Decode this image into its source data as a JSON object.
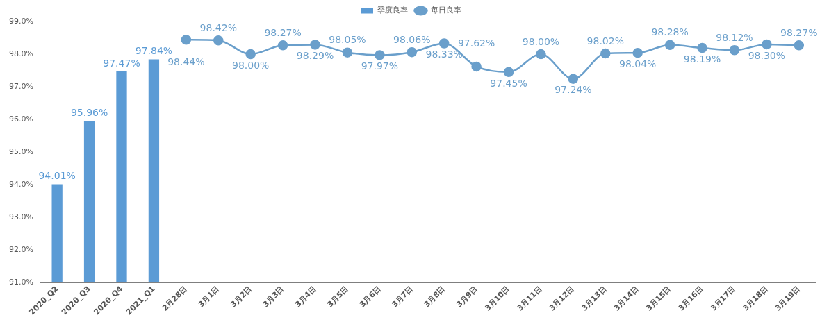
{
  "chart_data": {
    "type": "bar",
    "categories": [
      "2020_Q2",
      "2020_Q3",
      "2020_Q4",
      "2021_Q1",
      "2月28日",
      "3月1日",
      "3月2日",
      "3月3日",
      "3月4日",
      "3月5日",
      "3月6日",
      "3月7日",
      "3月8日",
      "3月9日",
      "3月10日",
      "3月11日",
      "3月12日",
      "3月13日",
      "3月14日",
      "3月15日",
      "3月16日",
      "3月17日",
      "3月18日",
      "3月19日"
    ],
    "series": [
      {
        "name": "季度良率",
        "color": "#5b9bd5",
        "values": [
          94.01,
          95.96,
          97.47,
          97.84,
          null,
          null,
          null,
          null,
          null,
          null,
          null,
          null,
          null,
          null,
          null,
          null,
          null,
          null,
          null,
          null,
          null,
          null,
          null,
          null
        ],
        "value_labels": [
          "94.01%",
          "95.96%",
          "97.47%",
          "97.84%",
          null,
          null,
          null,
          null,
          null,
          null,
          null,
          null,
          null,
          null,
          null,
          null,
          null,
          null,
          null,
          null,
          null,
          null,
          null,
          null
        ]
      },
      {
        "name": "每日良率",
        "type": "line",
        "color": "#6a9fcb",
        "values": [
          null,
          null,
          null,
          null,
          98.44,
          98.42,
          98.0,
          98.27,
          98.29,
          98.05,
          97.97,
          98.06,
          98.33,
          97.62,
          97.45,
          98.0,
          97.24,
          98.02,
          98.04,
          98.28,
          98.19,
          98.12,
          98.3,
          98.27
        ],
        "value_labels": [
          null,
          null,
          null,
          null,
          "98.44%",
          "98.42%",
          "98.00%",
          "98.27%",
          "98.29%",
          "98.05%",
          "97.97%",
          "98.06%",
          "98.33%",
          "97.62%",
          "97.45%",
          "98.00%",
          "97.24%",
          "98.02%",
          "98.04%",
          "98.28%",
          "98.19%",
          "98.12%",
          "98.30%",
          "98.27%"
        ]
      }
    ],
    "ylim": [
      91,
      99
    ],
    "yticks": [
      {
        "value": 91,
        "label": "91.0%"
      },
      {
        "value": 92,
        "label": "92.0%"
      },
      {
        "value": 93,
        "label": "93.0%"
      },
      {
        "value": 94,
        "label": "94.0%"
      },
      {
        "value": 95,
        "label": "95.0%"
      },
      {
        "value": 96,
        "label": "96.0%"
      },
      {
        "value": 97,
        "label": "97.0%"
      },
      {
        "value": 98,
        "label": "98.0%"
      },
      {
        "value": 99,
        "label": "99.0%"
      }
    ],
    "grid": false,
    "legend": "top",
    "marker": "circle",
    "line_style": "solid"
  }
}
